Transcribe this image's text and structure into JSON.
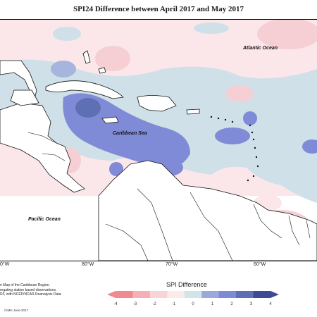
{
  "title": "SPI24 Difference between April 2017 and May 2017",
  "labels": {
    "atlantic": "Atlantic Ocean",
    "caribbean": "Caribbean Sea",
    "pacific": "Pacific Ocean"
  },
  "longitudes": [
    "0°W",
    "80°W",
    "70°W",
    "60°W"
  ],
  "credits": "n Map of the Caribbean Region.\nregating station based observations,\nDF, with NCEP/NCAR Reanalysis Data.",
  "stamp": "CIMH June-2017",
  "legend": {
    "title": "SPI Difference",
    "ticks": [
      "-4",
      "-3",
      "-2",
      "-1",
      "0",
      "1",
      "2",
      "3",
      "4"
    ],
    "colors": [
      "#f08a8f",
      "#f4b0b4",
      "#f8d4d6",
      "#fce9ea",
      "#d3e3ea",
      "#9ba8dc",
      "#7d8bd6",
      "#5f6fb4",
      "#3e4a96"
    ]
  },
  "palette": {
    "strong_pos": "#7f8bd6",
    "mid_pos": "#a6b5dd",
    "light_pos": "#cfe0e8",
    "light_neg": "#fbe6e9",
    "mid_neg": "#f6cfd4"
  }
}
